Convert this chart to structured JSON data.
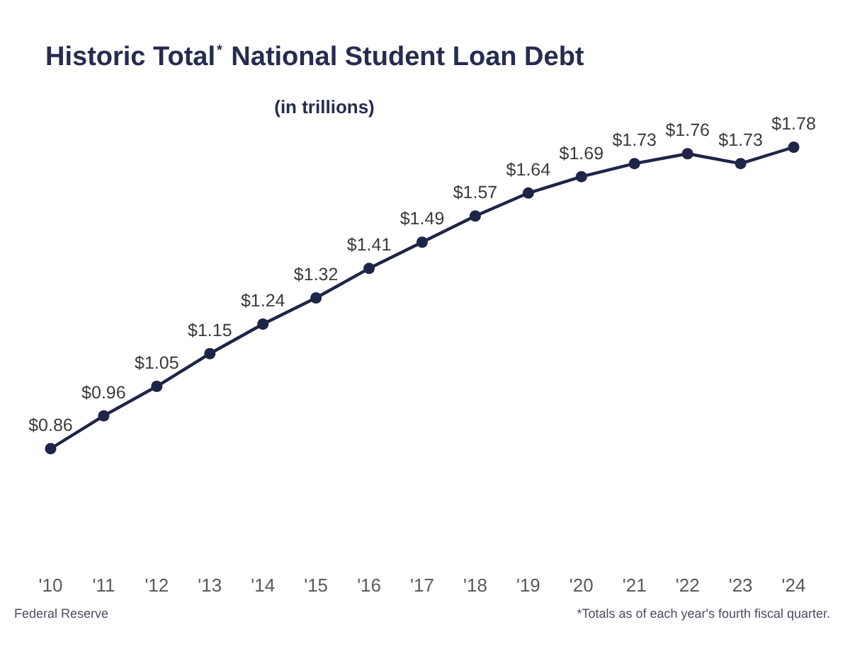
{
  "chart_data": {
    "type": "line",
    "title": "Historic Total$^{*}$ National Student Loan Debt",
    "subtitle": "(in trillions)",
    "categories": [
      "'10",
      "'11",
      "'12",
      "'13",
      "'14",
      "'15",
      "'16",
      "'17",
      "'18",
      "'19",
      "'20",
      "'21",
      "'22",
      "'23",
      "'24"
    ],
    "values": [
      0.86,
      0.96,
      1.05,
      1.15,
      1.24,
      1.32,
      1.41,
      1.49,
      1.57,
      1.64,
      1.69,
      1.73,
      1.76,
      1.73,
      1.78
    ],
    "value_labels": [
      "$0.86",
      "$0.96",
      "$1.05",
      "$1.15",
      "$1.24",
      "$1.32",
      "$1.41",
      "$1.49",
      "$1.57",
      "$1.64",
      "$1.69",
      "$1.73",
      "$1.76",
      "$1.73",
      "$1.78"
    ],
    "color": "#1e2547",
    "marker": "circle",
    "line_style": "solid",
    "annotations": [
      "Federal Reserve",
      "*Totals as of each year's fourth fiscal quarter."
    ]
  }
}
